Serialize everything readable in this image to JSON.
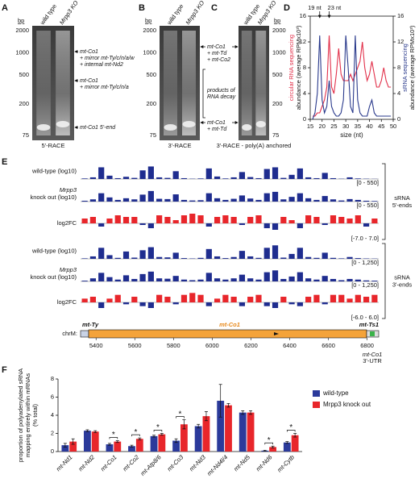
{
  "panel_labels": [
    "A",
    "B",
    "C",
    "D",
    "E",
    "F"
  ],
  "gels": [
    {
      "ladder_unit": "bp",
      "ladder": [
        2000,
        1000,
        500,
        200,
        75
      ],
      "lanes": [
        "wild type",
        "Mrpp3 KO"
      ],
      "caption": "5'-RACE",
      "annotations": [
        [
          "mt-Co1",
          "+ mirror mt-Ty/c/n/a/w",
          "+ internal mt-Nd2"
        ],
        [
          "mt-Co1",
          "+ mirror mt-Ty/c/n/a"
        ],
        [
          "mt-Co1 5'-end"
        ]
      ]
    },
    {
      "ladder_unit": "bp",
      "ladder": [
        2000,
        1000,
        500,
        200,
        75
      ],
      "lanes": [
        "wild type",
        "Mrpp3 KO"
      ],
      "caption": "3'-RACE",
      "annotations": [
        [
          "mt-Co1",
          "+ mt-Td",
          "+ mt-Co2"
        ],
        [
          "products of",
          "RNA decay"
        ],
        [
          "mt-Co1",
          "+ mt-Td"
        ]
      ]
    },
    {
      "ladder_unit": "bp",
      "ladder": [
        2000,
        1000,
        500,
        200,
        75
      ],
      "lanes": [
        "wild type",
        "Mrpp3 KO"
      ],
      "caption": "3'-RACE - poly(A) anchored"
    }
  ],
  "genome_tracks": {
    "xlim": [
      5320,
      6860
    ],
    "xticks": [
      5400,
      5600,
      5800,
      6000,
      6200,
      6400,
      6600,
      6800
    ],
    "chrom_label": "chrM:",
    "gene_labels": [
      "mt-Ty",
      "mt-Co1",
      "mt-Ts1"
    ],
    "utr_label": [
      "mt-Co1",
      "3'-UTR"
    ],
    "groups": [
      [
        "sRNA",
        "5'-ends"
      ],
      [
        "sRNA",
        "3'-ends"
      ]
    ],
    "tracks": [
      {
        "label": [
          "wild-type (log10)"
        ],
        "ylim": [
          0,
          550
        ],
        "range_label": "[0 - 550]",
        "color": "#1f2d8f",
        "values": [
          20,
          60,
          420,
          120,
          30,
          80,
          40,
          310,
          450,
          60,
          40,
          280,
          30,
          10,
          20,
          380,
          90,
          20,
          60,
          250,
          70,
          30,
          360,
          420,
          40,
          150,
          380,
          60,
          30,
          220,
          30,
          10,
          60,
          20,
          10,
          5
        ]
      },
      {
        "label": [
          "Mrpp3",
          "knock out (log10)"
        ],
        "ylim": [
          0,
          550
        ],
        "range_label": "[0 - 550]",
        "color": "#1f2d8f",
        "values": [
          30,
          80,
          300,
          150,
          60,
          120,
          80,
          250,
          380,
          100,
          90,
          260,
          60,
          40,
          50,
          300,
          120,
          60,
          100,
          220,
          110,
          60,
          300,
          350,
          80,
          170,
          300,
          120,
          60,
          200,
          80,
          40,
          90,
          60,
          30,
          20
        ]
      },
      {
        "label": [
          "log2FC"
        ],
        "ylim": [
          -7,
          7
        ],
        "range_label": "[-7.0 - 7.0]",
        "color": "#e8262b",
        "negative_color": "#1f2d8f",
        "values": [
          3,
          4,
          -2,
          3,
          5,
          4,
          4,
          -1,
          -3,
          5,
          4,
          2,
          5,
          6,
          5,
          -2,
          4,
          5,
          4,
          -1,
          4,
          5,
          -3,
          -4,
          4,
          2,
          -3,
          5,
          4,
          -1,
          5,
          4,
          3,
          5,
          -2,
          3
        ]
      },
      {
        "label": [
          "wild-type (log10)"
        ],
        "ylim": [
          0,
          1250
        ],
        "range_label": "[0 - 1,250]",
        "color": "#1f2d8f",
        "values": [
          40,
          200,
          900,
          300,
          80,
          600,
          100,
          700,
          950,
          150,
          120,
          500,
          60,
          30,
          80,
          800,
          200,
          60,
          150,
          650,
          200,
          80,
          900,
          1100,
          100,
          400,
          900,
          150,
          80,
          500,
          80,
          40,
          150,
          60,
          30,
          20
        ]
      },
      {
        "label": [
          "Mrpp3",
          "knock out (log10)"
        ],
        "ylim": [
          0,
          1250
        ],
        "range_label": "[0 - 1,250]",
        "color": "#1f2d8f",
        "values": [
          60,
          250,
          700,
          350,
          150,
          500,
          200,
          600,
          800,
          250,
          220,
          450,
          150,
          100,
          150,
          700,
          250,
          150,
          250,
          550,
          250,
          150,
          750,
          900,
          200,
          400,
          750,
          250,
          150,
          450,
          200,
          100,
          200,
          150,
          80,
          60
        ]
      },
      {
        "label": [
          "log2FC"
        ],
        "ylim": [
          -6,
          6
        ],
        "range_label": "[-6.0 - 6.0]",
        "color": "#e8262b",
        "negative_color": "#1f2d8f",
        "values": [
          2,
          3,
          -3,
          2,
          4,
          -1,
          3,
          -2,
          -3,
          4,
          3,
          -1,
          4,
          5,
          4,
          -2,
          2,
          4,
          3,
          -2,
          3,
          4,
          -2,
          -3,
          3,
          -1,
          -2,
          3,
          4,
          -1,
          4,
          4,
          2,
          4,
          3,
          4
        ]
      }
    ]
  },
  "chart_data": [
    {
      "type": "line",
      "x_label": "size (nt)",
      "y_label": [
        "circular RNA sequencing",
        "abundance (average RPMx10³)"
      ],
      "y2_label": [
        "sRNA sequencing",
        "abundance (average RPMx10³)"
      ],
      "x": [
        16,
        17,
        18,
        19,
        20,
        21,
        22,
        23,
        24,
        25,
        26,
        27,
        28,
        29,
        30,
        31,
        32,
        33,
        34,
        35,
        36,
        37,
        38,
        39,
        40,
        41,
        42,
        43,
        44,
        45,
        46,
        47,
        48,
        49
      ],
      "xlim": [
        15,
        50
      ],
      "xticks": [
        15,
        20,
        25,
        30,
        35,
        40,
        45,
        50
      ],
      "ylim": [
        0,
        16
      ],
      "yticks": [
        0,
        4,
        8,
        12,
        16
      ],
      "y2lim": [
        0,
        16
      ],
      "y2ticks": [
        0,
        4,
        8,
        12,
        16
      ],
      "annotations": [
        {
          "text": "19 nt",
          "x": 19
        },
        {
          "text": "23 nt",
          "x": 23
        }
      ],
      "series": [
        {
          "name": "circular RNA sequencing",
          "color": "#e2304a",
          "values": [
            0.5,
            0.5,
            1,
            1,
            2,
            3,
            5,
            13,
            5,
            4,
            7,
            11,
            7,
            6,
            6,
            6,
            7,
            6,
            7,
            8,
            9,
            12,
            8,
            6,
            7,
            9,
            7,
            5,
            5,
            6,
            8,
            6,
            5,
            5
          ]
        },
        {
          "name": "sRNA sequencing",
          "color": "#2a3a8c",
          "axis": "y2",
          "values": [
            0,
            1,
            4,
            13,
            3,
            1,
            2,
            6,
            2,
            1,
            0.5,
            0.5,
            1,
            3,
            13,
            8,
            2,
            1,
            13,
            3,
            1,
            0.5,
            0.5,
            0.5,
            2,
            3,
            1,
            0.5,
            0.5,
            0.5,
            0.5,
            0.5,
            0.5,
            0.5
          ]
        }
      ]
    },
    {
      "type": "bar",
      "y_label": [
        "proportion of polyadenylated sRNA",
        "mapping entirely within mRNAs",
        "(% total)"
      ],
      "categories": [
        "mt-Nd1",
        "mt-Nd2",
        "mt-Co1",
        "mt-Co2",
        "mt-Atp8/6",
        "mt-Co3",
        "mt-Nd3",
        "mt-Nd4l/4",
        "mt-Nd5",
        "mt-Nd6",
        "mt-Cytb"
      ],
      "ylim": [
        0,
        8
      ],
      "yticks": [
        0,
        2,
        4,
        6,
        8
      ],
      "significance": [
        null,
        null,
        "*",
        "*",
        "*",
        "*",
        null,
        null,
        null,
        "*",
        "*"
      ],
      "series": [
        {
          "name": "wild-type",
          "color": "#2b3a9b",
          "values": [
            0.7,
            2.3,
            0.8,
            0.6,
            1.7,
            1.2,
            2.8,
            5.6,
            4.3,
            0.1,
            1.0
          ],
          "errors": [
            0.2,
            0.1,
            0.1,
            0.1,
            0.1,
            0.2,
            0.2,
            1.8,
            0.2,
            0.05,
            0.1
          ]
        },
        {
          "name": "Mrpp3 knock out",
          "color": "#e8262b",
          "values": [
            1.1,
            2.2,
            1.1,
            1.4,
            1.9,
            3.0,
            3.9,
            5.1,
            4.3,
            0.5,
            1.8
          ],
          "errors": [
            0.3,
            0.1,
            0.1,
            0.1,
            0.1,
            0.5,
            0.5,
            0.2,
            0.2,
            0.1,
            0.2
          ]
        }
      ]
    }
  ]
}
